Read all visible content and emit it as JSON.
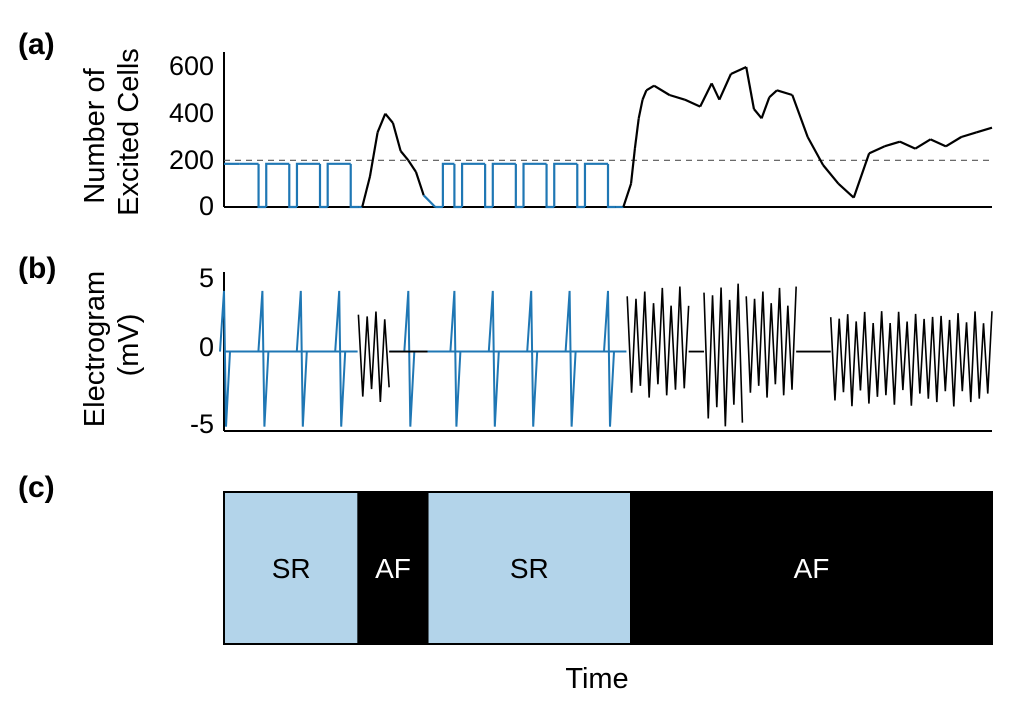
{
  "panel_labels": [
    "(a)",
    "(b)",
    "(c)"
  ],
  "colors": {
    "sr": "#1f77b4",
    "af": "#000000",
    "sr_fill": "#b3d4ea",
    "af_fill": "#000000"
  },
  "chart_data": [
    {
      "panel": "(a)",
      "type": "line",
      "ylabel_lines": [
        "Number of",
        "Excited Cells"
      ],
      "yticks": [
        "0",
        "200",
        "400",
        "600"
      ],
      "ylim": [
        0,
        630
      ],
      "threshold": 200,
      "xlim": [
        0,
        1
      ],
      "x": [
        0.0,
        0.02,
        0.045,
        0.055,
        0.085,
        0.095,
        0.125,
        0.135,
        0.165,
        0.175,
        0.18,
        0.19,
        0.2,
        0.21,
        0.22,
        0.23,
        0.24,
        0.25,
        0.26,
        0.275,
        0.285,
        0.3,
        0.31,
        0.34,
        0.35,
        0.38,
        0.39,
        0.42,
        0.43,
        0.46,
        0.47,
        0.5,
        0.51,
        0.52,
        0.53,
        0.535,
        0.54,
        0.545,
        0.55,
        0.56,
        0.58,
        0.6,
        0.62,
        0.635,
        0.645,
        0.66,
        0.68,
        0.69,
        0.7,
        0.71,
        0.72,
        0.74,
        0.76,
        0.78,
        0.8,
        0.82,
        0.84,
        0.86,
        0.88,
        0.9,
        0.92,
        0.94,
        0.96,
        0.98,
        1.0
      ],
      "series": [
        {
          "values": [
            185,
            185,
            185,
            0,
            185,
            0,
            185,
            0,
            185,
            0,
            0,
            130,
            320,
            400,
            360,
            240,
            200,
            150,
            50,
            0,
            0,
            185,
            0,
            185,
            0,
            185,
            0,
            185,
            0,
            185,
            0,
            185,
            0,
            0,
            100,
            250,
            380,
            460,
            500,
            520,
            480,
            460,
            430,
            530,
            460,
            570,
            600,
            420,
            380,
            470,
            500,
            480,
            300,
            180,
            100,
            40,
            230,
            260,
            280,
            250,
            290,
            260,
            300,
            320,
            340
          ]
        }
      ],
      "sr_ranges": [
        [
          0.0,
          0.18
        ],
        [
          0.26,
          0.52
        ]
      ]
    },
    {
      "panel": "(b)",
      "type": "line",
      "ylabel_lines": [
        "Electrogram",
        "(mV)"
      ],
      "yticks": [
        "-5",
        "0",
        "5"
      ],
      "ylim": [
        -5.5,
        5.3
      ],
      "xlim": [
        0,
        1
      ],
      "sr_spikes": [
        0.0,
        0.05,
        0.1,
        0.15,
        0.24,
        0.3,
        0.35,
        0.4,
        0.45,
        0.5
      ],
      "af_segments": [
        {
          "x": [
            0.175,
            0.215
          ],
          "amplitude": [
            3,
            -3.5
          ]
        },
        {
          "x": [
            0.525,
            0.605
          ],
          "amplitude": [
            4.5,
            -3.2
          ]
        },
        {
          "x": [
            0.625,
            0.675
          ],
          "amplitude": [
            4.8,
            -5.2
          ]
        },
        {
          "x": [
            0.68,
            0.745
          ],
          "amplitude": [
            4.5,
            -3.2
          ]
        },
        {
          "x": [
            0.79,
            1.0
          ],
          "amplitude": [
            2.8,
            -3.8
          ]
        }
      ]
    },
    {
      "panel": "(c)",
      "type": "bar",
      "segments": [
        {
          "label": "SR",
          "start": 0.0,
          "end": 0.175
        },
        {
          "label": "AF",
          "start": 0.175,
          "end": 0.265
        },
        {
          "label": "SR",
          "start": 0.265,
          "end": 0.53
        },
        {
          "label": "AF",
          "start": 0.53,
          "end": 1.0
        }
      ],
      "xlabel": "Time"
    }
  ]
}
